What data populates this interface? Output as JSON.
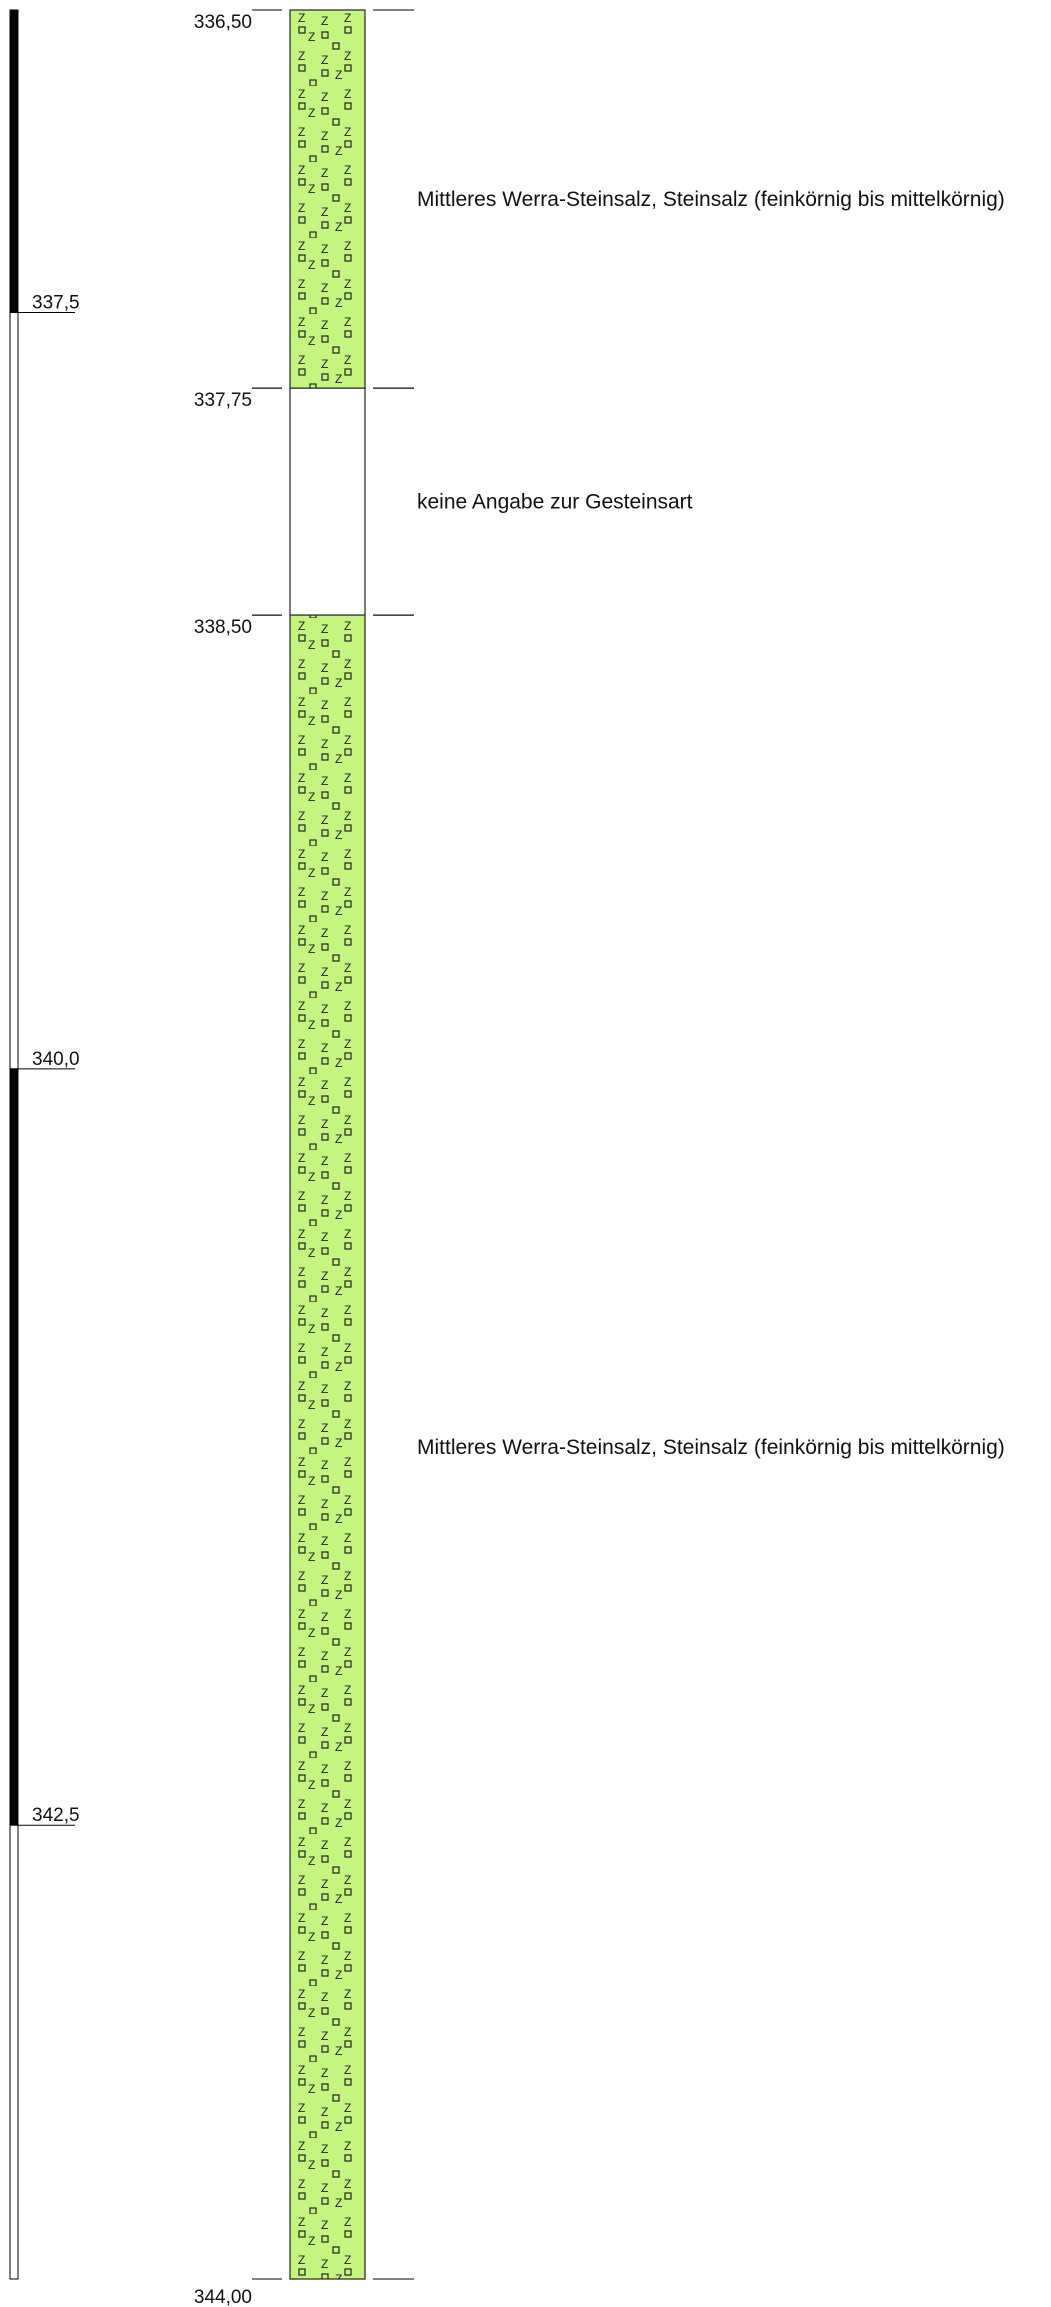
{
  "diagram": {
    "depth_range": [
      336.5,
      344.0
    ],
    "scale_ticks": [
      {
        "value": 337.5,
        "label": "337,5"
      },
      {
        "value": 340.0,
        "label": "340,0"
      },
      {
        "value": 342.5,
        "label": "342,5"
      }
    ],
    "scale_bar_pattern": [
      {
        "from": 336.5,
        "to": 337.5,
        "fill": "black"
      },
      {
        "from": 337.5,
        "to": 340.0,
        "fill": "white"
      },
      {
        "from": 340.0,
        "to": 342.5,
        "fill": "black"
      },
      {
        "from": 342.5,
        "to": 344.0,
        "fill": "white"
      }
    ],
    "layers": [
      {
        "top": 336.5,
        "bottom": 337.75,
        "top_label": "336,50",
        "bottom_label": "337,75",
        "pattern": "salt",
        "color": "#c3f57f",
        "description": "Mittleres Werra-Steinsalz, Steinsalz (feinkörnig bis mittelkörnig)"
      },
      {
        "top": 337.75,
        "bottom": 338.5,
        "top_label": "337,75",
        "bottom_label": "338,50",
        "pattern": "none",
        "color": "#ffffff",
        "description": "keine Angabe zur Gesteinsart"
      },
      {
        "top": 338.5,
        "bottom": 344.0,
        "top_label": "338,50",
        "bottom_label": "344,00",
        "pattern": "salt",
        "color": "#c3f57f",
        "description": "Mittleres Werra-Steinsalz, Steinsalz (feinkörnig bis mittelkörnig)"
      }
    ]
  }
}
